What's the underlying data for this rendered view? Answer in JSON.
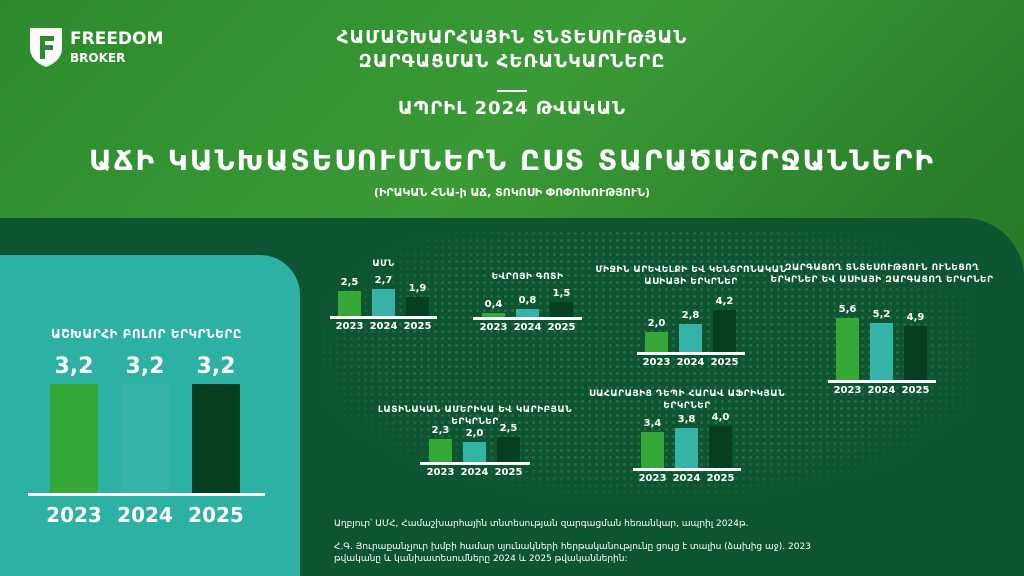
{
  "logo": {
    "line1": "FREEDOM",
    "line2": "BROKER"
  },
  "header": {
    "title_line1": "ՀԱՄԱՇԽԱՐՀԱՅԻՆ ՏՆՏԵՍՈՒԹՅԱՆ",
    "title_line2": "ԶԱՐԳԱՑՄԱՆ ՀԵՌԱՆԿԱՐՆԵՐԸ",
    "date": "ԱՊՐԻԼ 2024 ԹՎԱԿԱՆ",
    "headline": "ԱՃԻ ԿԱՆԽԱՏԵՍՈՒՄՆԵՐՆ ԸՍՏ ՏԱՐԱԾԱՇՐՋԱՆՆԵՐԻ",
    "subtitle": "(ԻՐԱԿԱՆ ՀՆԱ-ի ԱՃ, ՏՈԿՈՍԻ ՓՈՓՈԽՈՒԹՅՈՒՆ)"
  },
  "colors": {
    "y2023": "#35a837",
    "y2024": "#36b3a7",
    "y2025": "#063f1f",
    "panel": "#0d5531",
    "teal_panel": "#2db1a3"
  },
  "chart_data": [
    {
      "id": "world",
      "type": "bar",
      "title": "ԱՇԽԱՐՀԻ ԲՈԼՈՐ ԵՐԿՐՆԵՐԸ",
      "categories": [
        "2023",
        "2024",
        "2025"
      ],
      "values": [
        3.2,
        3.2,
        3.2
      ],
      "labels": [
        "3,2",
        "3,2",
        "3,2"
      ]
    },
    {
      "id": "us",
      "type": "bar",
      "title": "ԱՄՆ",
      "categories": [
        "2023",
        "2024",
        "2025"
      ],
      "values": [
        2.5,
        2.7,
        1.9
      ],
      "labels": [
        "2,5",
        "2,7",
        "1,9"
      ]
    },
    {
      "id": "euro",
      "type": "bar",
      "title": "ԵՎՐՈՅԻ ԳՈՏԻ",
      "categories": [
        "2023",
        "2024",
        "2025"
      ],
      "values": [
        0.4,
        0.8,
        1.5
      ],
      "labels": [
        "0,4",
        "0,8",
        "1,5"
      ]
    },
    {
      "id": "mena",
      "type": "bar",
      "title": "ՄԻՋԻՆ ԱՐԵՎԵԼՔԻ ԵՎ ԿԵՆՏՐՈՆԱԿԱՆ ԱՍԻԱՅԻ ԵՐԿՐՆԵՐ",
      "categories": [
        "2023",
        "2024",
        "2025"
      ],
      "values": [
        2.0,
        2.8,
        4.2
      ],
      "labels": [
        "2,0",
        "2,8",
        "4,2"
      ]
    },
    {
      "id": "latam",
      "type": "bar",
      "title": "ԼԱՏԻՆԱԿԱՆ ԱՄԵՐԻԿԱ ԵՎ ԿԱՐԻԲՅԱՆ ԵՐԿՐՆԵՐ",
      "categories": [
        "2023",
        "2024",
        "2025"
      ],
      "values": [
        2.3,
        2.0,
        2.5
      ],
      "labels": [
        "2,3",
        "2,0",
        "2,5"
      ]
    },
    {
      "id": "ssa",
      "type": "bar",
      "title": "ՍԱՀԱՐԱՅԻՑ ԴԵՊԻ ՀԱՐԱՎ ԱՖՐԻԿՅԱՆ ԵՐԿՐՆԵՐ",
      "categories": [
        "2023",
        "2024",
        "2025"
      ],
      "values": [
        3.4,
        3.8,
        4.0
      ],
      "labels": [
        "3,4",
        "3,8",
        "4,0"
      ]
    },
    {
      "id": "emde",
      "type": "bar",
      "title": "ԶԱՐԳԱՑՈՂ ՏՆՏԵՍՈՒԹՅՈՒՆ ՈՒՆԵՑՈՂ ԵՐԿՐՆԵՐ ԵՎ ԱՍԻԱՅԻ ԶԱՐԳԱՑՈՂ ԵՐԿՐՆԵՐ",
      "categories": [
        "2023",
        "2024",
        "2025"
      ],
      "values": [
        5.6,
        5.2,
        4.9
      ],
      "labels": [
        "5,6",
        "5,2",
        "4,9"
      ]
    }
  ],
  "footer": {
    "source": "Աղբյուր՝ ԱՄՀ, Համաշխարհային տնտեսության զարգացման հեռանկար, ապրիլ 2024թ.",
    "note": "Հ.Գ. Յուրաքանչյուր խմբի համար սյունակների հերթականությունը ցույց է տալիս (ձախից աջ). 2023 թվականը և կանխատեսումները 2024 և 2025 թվականներին:"
  }
}
